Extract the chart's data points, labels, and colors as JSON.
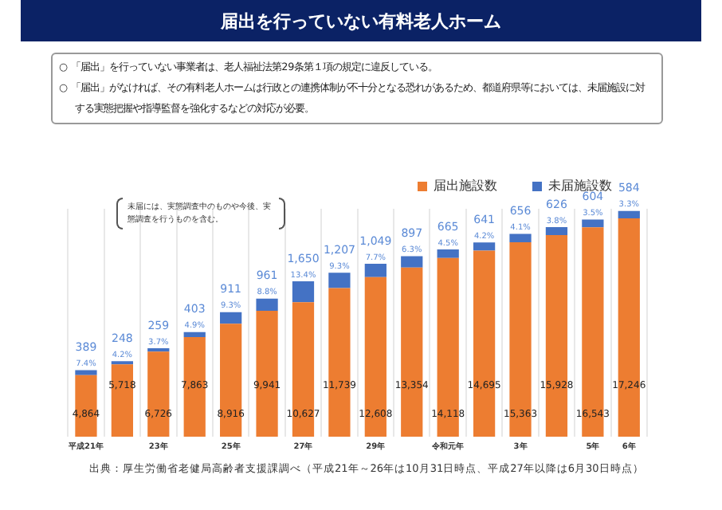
{
  "chart_data": {
    "type": "bar",
    "title": "届出を行っていない有料老人ホーム",
    "subtitle": "○ 「届出」を行っていない事業者は、老人福祉法第29条第１項の規定に違反している。\n○ 「届出」がなければ、その有料老人ホームは行政との連携体制が不十分となる恐れがあるため、都道府県等においては、未届施設に対する実態把握や指導監督を強化するなどの対応が必要。",
    "categories": [
      "平成21年",
      null,
      "23年",
      null,
      "25年",
      null,
      "27年",
      null,
      "29年",
      null,
      "令和元年",
      null,
      "3年",
      null,
      "5年",
      "6年"
    ],
    "stacked": true,
    "legend": "top right",
    "grid": "x",
    "tick_labels": "x",
    "series": [
      {
        "name": "届出施設数",
        "color": "#ed7d31",
        "values": [
          4864,
          5718,
          6726,
          7863,
          8916,
          9941,
          10627,
          11739,
          12608,
          13354,
          14118,
          14695,
          15363,
          15928,
          16543,
          17246
        ],
        "value_labels": [
          "4,864",
          "5,718",
          "6,726",
          "7,863",
          "8,916",
          "9,941",
          "10,627",
          "11,739",
          "12,608",
          "13,354",
          "14,118",
          "14,695",
          "15,363",
          "15,928",
          "16,543",
          "17,246"
        ]
      },
      {
        "name": "未届施設数",
        "color": "#4472c4",
        "values": [
          389,
          248,
          259,
          403,
          911,
          961,
          1650,
          1207,
          1049,
          897,
          665,
          641,
          656,
          626,
          604,
          584
        ],
        "value_labels": [
          "389\n7.4%",
          "248\n4.2%",
          "259\n3.7%",
          "403\n4.9%",
          "911\n9.3%",
          "961\n8.8%",
          "1,650\n13.4%",
          "1,207\n9.3%",
          "1,049\n7.7%",
          "897\n6.3%",
          "665\n4.5%",
          "641\n4.2%",
          "656\n4.1%",
          "626\n3.8%",
          "604\n3.5%",
          "584\n3.3%"
        ]
      }
    ],
    "annotations": [
      "未届には、実態調査中のものや今後、実態調査を行うものを含む。",
      "出典：厚生労働省老健局高齢者支援課調べ（平成21年～26年は10月31日時点、平成27年以降は6月30日時点）"
    ]
  }
}
